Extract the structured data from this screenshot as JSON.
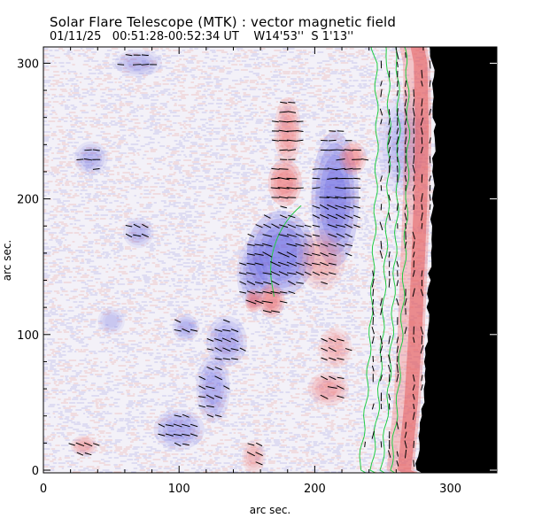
{
  "header": {
    "title": "Solar Flare Telescope (MTK) : vector magnetic field",
    "date": "01/11/25",
    "time_range": "00:51:28-00:52:34 UT",
    "position": "W14'53''  S 1'13''"
  },
  "chart_data": {
    "type": "heatmap",
    "title": "Solar Flare Telescope (MTK) : vector magnetic field",
    "xlabel": "arc sec.",
    "ylabel": "arc sec.",
    "xlim": [
      0,
      335
    ],
    "ylim": [
      0,
      315
    ],
    "x_ticks": [
      0,
      100,
      200,
      300
    ],
    "y_ticks": [
      0,
      100,
      200,
      300
    ],
    "colors": {
      "positive": "#f06060",
      "negative": "#4a4ae0",
      "contour": "#22cc44",
      "limb": "#000000",
      "vector": "#000000"
    },
    "positive_regions": [
      {
        "cx": 178,
        "cy": 212,
        "rx": 10,
        "ry": 14,
        "strength": 0.9
      },
      {
        "cx": 180,
        "cy": 250,
        "rx": 8,
        "ry": 20,
        "strength": 0.7
      },
      {
        "cx": 168,
        "cy": 125,
        "rx": 8,
        "ry": 10,
        "strength": 0.9
      },
      {
        "cx": 205,
        "cy": 155,
        "rx": 14,
        "ry": 18,
        "strength": 0.5
      },
      {
        "cx": 228,
        "cy": 230,
        "rx": 8,
        "ry": 10,
        "strength": 0.75
      },
      {
        "cx": 210,
        "cy": 60,
        "rx": 12,
        "ry": 10,
        "strength": 0.6
      },
      {
        "cx": 215,
        "cy": 90,
        "rx": 10,
        "ry": 12,
        "strength": 0.45
      },
      {
        "cx": 30,
        "cy": 18,
        "rx": 8,
        "ry": 6,
        "strength": 0.55
      },
      {
        "cx": 155,
        "cy": 10,
        "rx": 7,
        "ry": 10,
        "strength": 0.5
      },
      {
        "cx": 155,
        "cy": 125,
        "rx": 5,
        "ry": 7,
        "strength": 0.9
      }
    ],
    "negative_regions": [
      {
        "cx": 215,
        "cy": 200,
        "rx": 14,
        "ry": 40,
        "strength": 0.85
      },
      {
        "cx": 175,
        "cy": 160,
        "rx": 20,
        "ry": 25,
        "strength": 0.9
      },
      {
        "cx": 155,
        "cy": 145,
        "rx": 10,
        "ry": 20,
        "strength": 0.55
      },
      {
        "cx": 135,
        "cy": 95,
        "rx": 12,
        "ry": 15,
        "strength": 0.5
      },
      {
        "cx": 125,
        "cy": 60,
        "rx": 10,
        "ry": 20,
        "strength": 0.5
      },
      {
        "cx": 100,
        "cy": 30,
        "rx": 15,
        "ry": 12,
        "strength": 0.5
      },
      {
        "cx": 105,
        "cy": 105,
        "rx": 8,
        "ry": 8,
        "strength": 0.45
      },
      {
        "cx": 70,
        "cy": 175,
        "rx": 9,
        "ry": 9,
        "strength": 0.4
      },
      {
        "cx": 35,
        "cy": 230,
        "rx": 10,
        "ry": 10,
        "strength": 0.4
      },
      {
        "cx": 70,
        "cy": 300,
        "rx": 14,
        "ry": 8,
        "strength": 0.4
      },
      {
        "cx": 50,
        "cy": 110,
        "rx": 8,
        "ry": 8,
        "strength": 0.3
      },
      {
        "cx": 265,
        "cy": 240,
        "rx": 15,
        "ry": 30,
        "strength": 0.35
      }
    ],
    "limb_x_at_y": [
      [
        0,
        275
      ],
      [
        50,
        280
      ],
      [
        100,
        283
      ],
      [
        150,
        285
      ],
      [
        200,
        287
      ],
      [
        250,
        288
      ],
      [
        300,
        287
      ],
      [
        315,
        284
      ]
    ],
    "contour_offsets": [
      -42,
      -33,
      -26,
      -19
    ]
  }
}
